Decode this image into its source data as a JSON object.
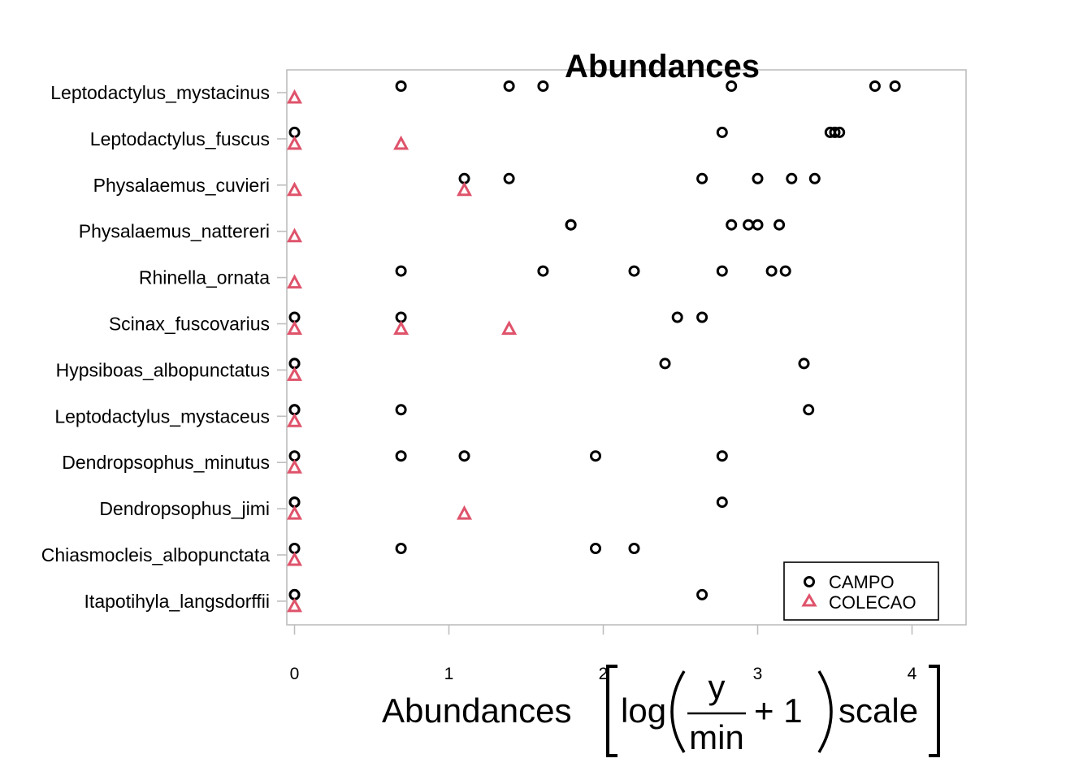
{
  "chart_data": {
    "type": "scatter",
    "title": "Abundances",
    "xlabel": {
      "prefix": "Abundances",
      "log": "log",
      "numerator": "y",
      "denominator": "min",
      "plus_one": "+ 1",
      "suffix": "scale"
    },
    "ylabel": "",
    "xlim": [
      -0.05,
      4.35
    ],
    "xticks": [
      0,
      1,
      2,
      3,
      4
    ],
    "grid": false,
    "legend_position": "bottom-right",
    "categories": [
      "Leptodactylus_mystacinus",
      "Leptodactylus_fuscus",
      "Physalaemus_cuvieri",
      "Physalaemus_nattereri",
      "Rhinella_ornata",
      "Scinax_fuscovarius",
      "Hypsiboas_albopunctatus",
      "Leptodactylus_mystaceus",
      "Dendropsophus_minutus",
      "Dendropsophus_jimi",
      "Chiasmocleis_albopunctata",
      "Itapotihyla_langsdorffii"
    ],
    "series": [
      {
        "name": "CAMPO",
        "marker": "circle",
        "color": "#000000",
        "values": [
          [
            0.69,
            1.39,
            1.61,
            2.83,
            3.76,
            3.89
          ],
          [
            0,
            2.77,
            3.47,
            3.5,
            3.53
          ],
          [
            1.1,
            1.39,
            2.64,
            3.0,
            3.22,
            3.37
          ],
          [
            1.79,
            1.79,
            2.83,
            2.94,
            3.0,
            3.14
          ],
          [
            0.69,
            1.61,
            2.2,
            2.77,
            3.09,
            3.18
          ],
          [
            0,
            0.69,
            2.48,
            2.64
          ],
          [
            0,
            0,
            2.4,
            3.3
          ],
          [
            0,
            0,
            0.69,
            3.33
          ],
          [
            0,
            0.69,
            1.1,
            1.95,
            2.77
          ],
          [
            0,
            0,
            2.77
          ],
          [
            0,
            0.69,
            1.95,
            2.2
          ],
          [
            0,
            0,
            2.64
          ]
        ]
      },
      {
        "name": "COLECAO",
        "marker": "triangle",
        "color": "#DF536B",
        "values": [
          [
            0
          ],
          [
            0,
            0.69
          ],
          [
            0,
            1.1
          ],
          [
            0
          ],
          [
            0
          ],
          [
            0,
            0.69,
            1.39
          ],
          [
            0
          ],
          [
            0
          ],
          [
            0
          ],
          [
            0,
            1.1
          ],
          [
            0
          ],
          [
            0
          ]
        ]
      }
    ]
  }
}
